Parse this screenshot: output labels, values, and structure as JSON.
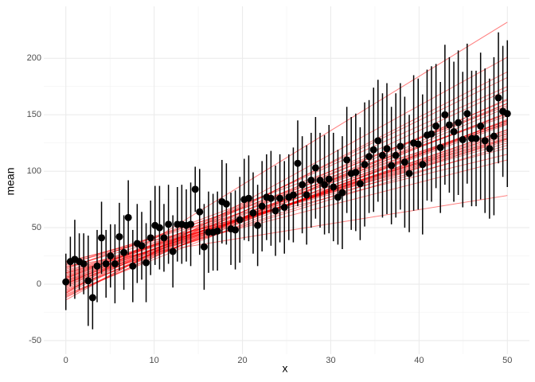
{
  "chart_data": {
    "type": "scatter",
    "x_label": "x",
    "y_label": "mean",
    "xlim": [
      -2.5,
      52.5
    ],
    "ylim": [
      -62,
      246
    ],
    "xticks": [
      0,
      10,
      20,
      30,
      40,
      50
    ],
    "yticks": [
      -50,
      0,
      50,
      100,
      150,
      200
    ],
    "grid": true,
    "point_color": "#000000",
    "line_color": "#ff0000",
    "x": [
      0,
      0.51,
      1.01,
      1.52,
      2.02,
      2.53,
      3.03,
      3.54,
      4.04,
      4.55,
      5.05,
      5.56,
      6.06,
      6.57,
      7.07,
      7.58,
      8.08,
      8.59,
      9.09,
      9.6,
      10.1,
      10.61,
      11.11,
      11.62,
      12.12,
      12.63,
      13.13,
      13.64,
      14.14,
      14.65,
      15.15,
      15.66,
      16.16,
      16.67,
      17.17,
      17.68,
      18.18,
      18.69,
      19.19,
      19.7,
      20.2,
      20.71,
      21.21,
      21.72,
      22.22,
      22.73,
      23.23,
      23.74,
      24.24,
      24.75,
      25.25,
      25.76,
      26.26,
      26.77,
      27.27,
      27.78,
      28.28,
      28.79,
      29.29,
      29.8,
      30.3,
      30.81,
      31.31,
      31.82,
      32.32,
      32.83,
      33.33,
      33.84,
      34.34,
      34.85,
      35.35,
      35.86,
      36.36,
      36.87,
      37.37,
      37.88,
      38.38,
      38.89,
      39.39,
      39.9,
      40.4,
      40.91,
      41.41,
      41.92,
      42.42,
      42.93,
      43.43,
      43.94,
      44.44,
      44.95,
      45.45,
      45.96,
      46.46,
      46.97,
      47.47,
      47.98,
      48.48,
      48.99,
      49.49,
      50
    ],
    "values": [
      2,
      20,
      22,
      20,
      18,
      3,
      -12,
      16,
      41,
      18,
      25,
      18,
      42,
      28,
      59,
      16,
      36,
      34,
      19,
      41,
      52,
      50,
      41,
      53,
      29,
      53,
      53,
      52,
      53,
      84,
      64,
      33,
      46,
      46,
      47,
      73,
      71,
      49,
      48,
      57,
      75,
      76,
      63,
      52,
      69,
      77,
      76,
      65,
      76,
      68,
      77,
      79,
      107,
      88,
      79,
      92,
      103,
      92,
      88,
      93,
      86,
      77,
      81,
      110,
      98,
      99,
      89,
      106,
      113,
      119,
      127,
      114,
      120,
      105,
      114,
      122,
      108,
      98,
      125,
      124,
      106,
      132,
      133,
      140,
      121,
      150,
      141,
      135,
      143,
      128,
      151,
      129,
      129,
      140,
      127,
      120,
      131,
      165,
      153,
      151
    ],
    "errors": [
      25,
      22,
      35,
      25,
      27,
      40,
      28,
      32,
      32,
      30,
      28,
      35,
      30,
      33,
      33,
      32,
      35,
      30,
      35,
      33,
      35,
      37,
      30,
      35,
      32,
      33,
      35,
      32,
      37,
      20,
      38,
      38,
      36,
      34,
      35,
      37,
      36,
      32,
      35,
      38,
      36,
      38,
      36,
      36,
      40,
      38,
      42,
      40,
      39,
      41,
      38,
      42,
      38,
      43,
      44,
      42,
      45,
      42,
      44,
      48,
      48,
      42,
      50,
      47,
      50,
      52,
      50,
      55,
      50,
      55,
      54,
      55,
      58,
      52,
      55,
      56,
      58,
      52,
      60,
      58,
      62,
      58,
      60,
      55,
      58,
      62,
      60,
      62,
      64,
      60,
      62,
      60,
      60,
      65,
      64,
      62,
      70,
      58,
      58,
      65
    ],
    "lines": [
      {
        "intercept": -5,
        "slope": 3.0
      },
      {
        "intercept": 5,
        "slope": 2.6
      },
      {
        "intercept": 10,
        "slope": 2.4
      },
      {
        "intercept": -10,
        "slope": 3.4
      },
      {
        "intercept": 0,
        "slope": 2.9
      },
      {
        "intercept": 15,
        "slope": 2.2
      },
      {
        "intercept": -12,
        "slope": 4.0
      },
      {
        "intercept": 8,
        "slope": 2.5
      },
      {
        "intercept": 3,
        "slope": 2.8
      },
      {
        "intercept": -3,
        "slope": 3.1
      },
      {
        "intercept": 12,
        "slope": 2.3
      },
      {
        "intercept": 20,
        "slope": 1.9
      },
      {
        "intercept": -8,
        "slope": 3.6
      },
      {
        "intercept": 2,
        "slope": 2.7
      },
      {
        "intercept": 6,
        "slope": 2.55
      },
      {
        "intercept": -6,
        "slope": 3.25
      },
      {
        "intercept": 18,
        "slope": 2.05
      },
      {
        "intercept": 1,
        "slope": 3.0
      },
      {
        "intercept": -1,
        "slope": 2.85
      },
      {
        "intercept": 9,
        "slope": 2.45
      },
      {
        "intercept": 14,
        "slope": 2.7
      },
      {
        "intercept": -14,
        "slope": 4.3
      },
      {
        "intercept": 4,
        "slope": 2.65
      },
      {
        "intercept": 11,
        "slope": 2.35
      },
      {
        "intercept": -2,
        "slope": 3.3
      },
      {
        "intercept": 7,
        "slope": 2.75
      },
      {
        "intercept": 16,
        "slope": 1.25
      },
      {
        "intercept": 13,
        "slope": 2.9
      },
      {
        "intercept": -4,
        "slope": 2.95
      },
      {
        "intercept": 0,
        "slope": 3.5
      },
      {
        "intercept": 5,
        "slope": 3.1
      },
      {
        "intercept": 10,
        "slope": 2.0
      },
      {
        "intercept": -9,
        "slope": 3.1
      },
      {
        "intercept": 3,
        "slope": 2.4
      },
      {
        "intercept": 17,
        "slope": 2.5
      },
      {
        "intercept": -7,
        "slope": 3.8
      },
      {
        "intercept": 6,
        "slope": 2.9
      },
      {
        "intercept": 19,
        "slope": 2.2
      },
      {
        "intercept": 1,
        "slope": 2.55
      },
      {
        "intercept": -11,
        "slope": 3.5
      },
      {
        "intercept": -8,
        "slope": 4.8
      }
    ]
  }
}
